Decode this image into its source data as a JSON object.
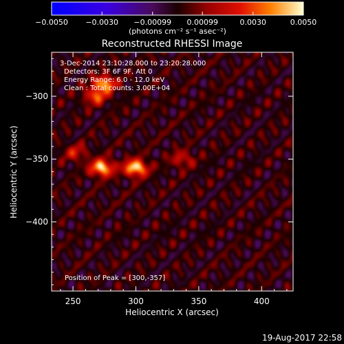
{
  "chart_data": {
    "type": "heatmap",
    "title": "Reconstructed RHESSI Image",
    "xlabel": "Heliocentric X (arcsec)",
    "ylabel": "Heliocentric Y (arcsec)",
    "xlim": [
      233,
      425
    ],
    "ylim": [
      -455,
      -265
    ],
    "xticks": [
      250,
      300,
      350,
      400
    ],
    "yticks": [
      -300,
      -350,
      -400
    ],
    "colorbar": {
      "range": [
        -0.005,
        0.005
      ],
      "tick_values": [
        -0.005,
        -0.003,
        -0.00099,
        0.00099,
        0.003,
        0.005
      ],
      "tick_labels": [
        "−0.0050",
        "−0.0030",
        "−0.00099",
        "0.00099",
        "0.0030",
        "0.0050"
      ],
      "unit": "(photons cm⁻² s⁻¹ asec⁻²)"
    },
    "annotations": [
      "3-Dec-2014 23:10:28.000 to 23:20:28.000",
      "Detectors: 3F 6F 9F, Att 0",
      "Energy Range: 6.0 - 12.0 keV",
      "Clean : Total counts: 3.00E+04"
    ],
    "peak_label": "Position of Peak = [300,-357]",
    "peak": [
      300,
      -357
    ],
    "sources": [
      {
        "x": 300,
        "y": -357,
        "value": 0.005
      },
      {
        "x": 273,
        "y": -357,
        "value": 0.0048
      },
      {
        "x": 275,
        "y": -290,
        "value": 0.0042
      },
      {
        "x": 268,
        "y": -300,
        "value": 0.003
      },
      {
        "x": 337,
        "y": -350,
        "value": 0.002
      },
      {
        "x": 252,
        "y": -345,
        "value": 0.002
      }
    ],
    "background_level": 0.0012,
    "timestamp": "19-Aug-2017 22:58"
  }
}
